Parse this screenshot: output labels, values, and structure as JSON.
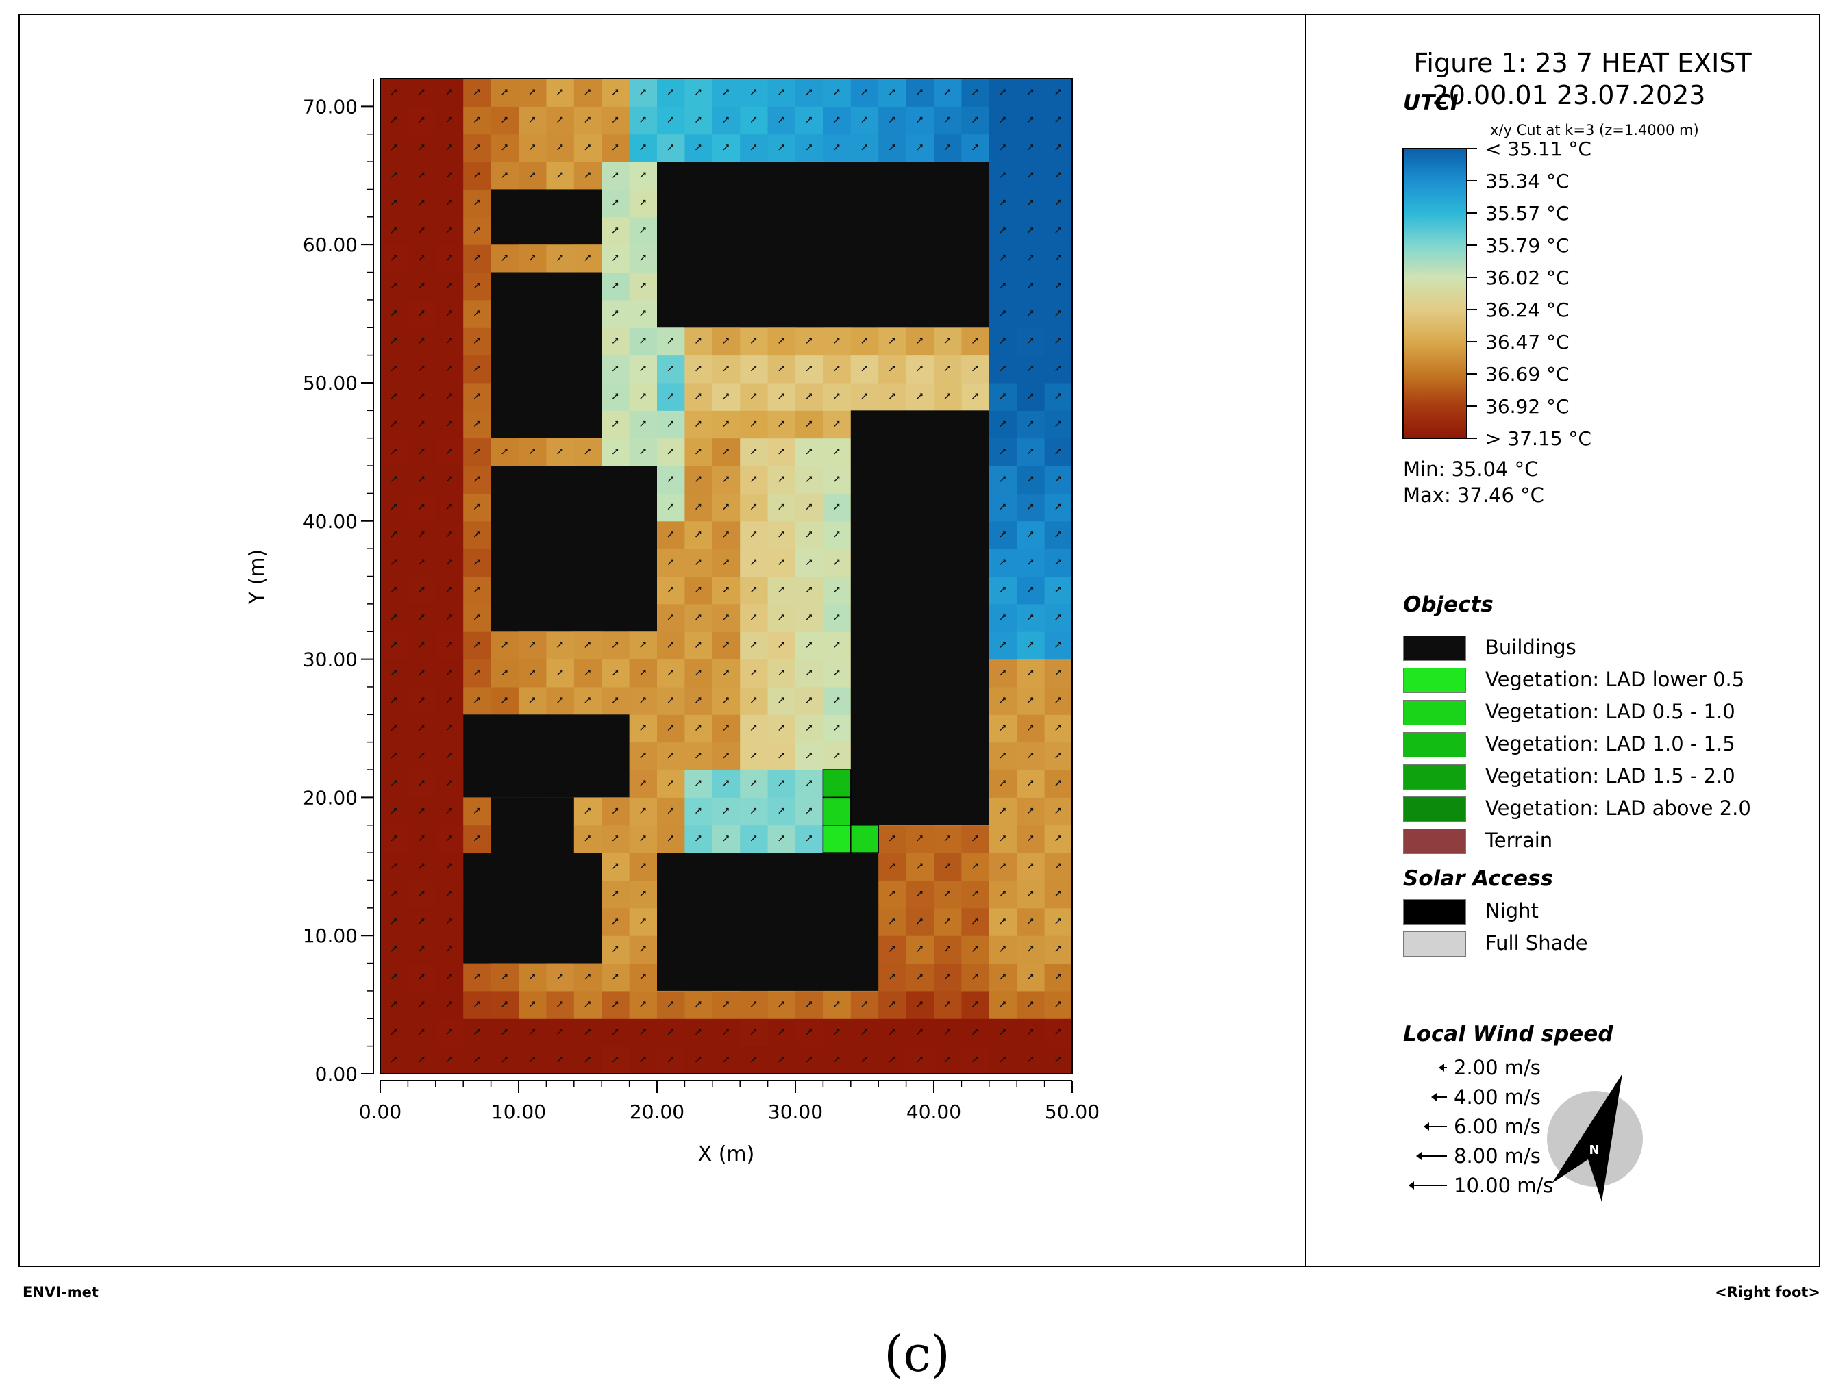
{
  "figure": {
    "title_line1": "Figure 1: 23 7 HEAT EXIST",
    "title_line2": "20.00.01 23.07.2023",
    "cut_label": "x/y Cut at k=3 (z=1.4000 m)"
  },
  "chart_data": {
    "type": "heatmap",
    "variable": "UTCI",
    "xlabel": "X (m)",
    "ylabel": "Y (m)",
    "xlim": [
      0,
      50
    ],
    "ylim": [
      0,
      72
    ],
    "x_ticks": [
      "0.00",
      "10.00",
      "20.00",
      "30.00",
      "40.00",
      "50.00"
    ],
    "y_ticks": [
      "0.00",
      "10.00",
      "20.00",
      "30.00",
      "40.00",
      "50.00",
      "60.00",
      "70.00"
    ],
    "grid_cell": [
      2,
      2
    ],
    "colorbar": {
      "labels": [
        "< 35.11 °C",
        "35.34  °C",
        "35.57  °C",
        "35.79  °C",
        "36.02  °C",
        "36.24  °C",
        "36.47  °C",
        "36.69  °C",
        "36.92  °C",
        "> 37.15 °C"
      ],
      "stops": [
        35.11,
        35.34,
        35.57,
        35.79,
        36.02,
        36.24,
        36.47,
        36.69,
        36.92,
        37.15
      ],
      "colors": [
        "#0a5fa8",
        "#1c8fd0",
        "#2cb8d8",
        "#7fd6d0",
        "#cfe3b2",
        "#e2cc86",
        "#d9a94c",
        "#c47824",
        "#a83c10",
        "#8e1806"
      ]
    },
    "min_text": "Min: 35.04 °C",
    "max_text": "Max: 37.46 °C",
    "buildings": [
      {
        "x": [
          8,
          16
        ],
        "y": [
          60,
          64
        ]
      },
      {
        "x": [
          8,
          16
        ],
        "y": [
          46,
          58
        ]
      },
      {
        "x": [
          8,
          20
        ],
        "y": [
          32,
          44
        ]
      },
      {
        "x": [
          20,
          44
        ],
        "y": [
          54,
          66
        ]
      },
      {
        "x": [
          34,
          44
        ],
        "y": [
          18,
          48
        ]
      },
      {
        "x": [
          6,
          18
        ],
        "y": [
          20,
          26
        ]
      },
      {
        "x": [
          8,
          14
        ],
        "y": [
          16,
          20
        ]
      },
      {
        "x": [
          6,
          16
        ],
        "y": [
          8,
          16
        ]
      },
      {
        "x": [
          20,
          36
        ],
        "y": [
          6,
          16
        ]
      }
    ],
    "vegetation": [
      {
        "x": [
          32,
          34
        ],
        "y": [
          20,
          22
        ],
        "class": "LAD 1.0 - 1.5"
      },
      {
        "x": [
          32,
          34
        ],
        "y": [
          18,
          20
        ],
        "class": "LAD 0.5 - 1.0"
      },
      {
        "x": [
          32,
          34
        ],
        "y": [
          16,
          18
        ],
        "class": "LAD lower 0.5"
      },
      {
        "x": [
          34,
          36
        ],
        "y": [
          16,
          18
        ],
        "class": "LAD 0.5 - 1.0"
      }
    ]
  },
  "legend": {
    "utci_label": "UTCI",
    "objects_title": "Objects",
    "objects": [
      {
        "label": "Buildings",
        "color": "#0d0d0d"
      },
      {
        "label": "Vegetation: LAD lower 0.5",
        "color": "#1fe61f"
      },
      {
        "label": "Vegetation:  LAD 0.5 - 1.0",
        "color": "#19d419"
      },
      {
        "label": "Vegetation:  LAD 1.0 - 1.5",
        "color": "#12bc12"
      },
      {
        "label": "Vegetation:  LAD 1.5 - 2.0",
        "color": "#0ea20e"
      },
      {
        "label": "Vegetation:  LAD above 2.0",
        "color": "#0b8a0b"
      },
      {
        "label": "Terrain",
        "color": "#8e3e3e"
      }
    ],
    "solar_title": "Solar Access",
    "solar": [
      {
        "label": "Night",
        "color": "#000000"
      },
      {
        "label": "Full Shade",
        "color": "#d2d2d2"
      }
    ],
    "wind_title": "Local Wind speed",
    "wind": [
      "2.00 m/s",
      "4.00 m/s",
      "6.00 m/s",
      "8.00 m/s",
      "10.00 m/s"
    ],
    "north_label": "N"
  },
  "footer": {
    "left": "ENVI-met",
    "right": "<Right foot>",
    "caption": "(c)"
  }
}
